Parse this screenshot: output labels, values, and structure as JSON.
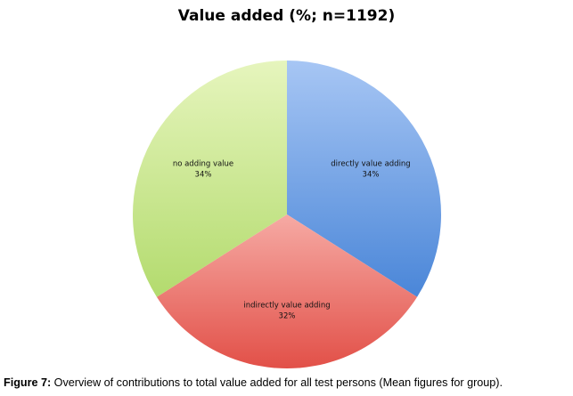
{
  "chart_data": {
    "type": "pie",
    "title": "Value added (%; n=1192)",
    "slices": [
      {
        "label": "directly value adding",
        "value": 34,
        "value_label": "34%",
        "color": "#6f9fdf"
      },
      {
        "label": "indirectly value adding",
        "value": 32,
        "value_label": "32%",
        "color": "#ec7b73"
      },
      {
        "label": "no adding value",
        "value": 34,
        "value_label": "34%",
        "color": "#c9e890"
      }
    ],
    "start": "12 o'clock",
    "direction": "clockwise",
    "legend": "none"
  },
  "caption": {
    "prefix": "Figure 7:",
    "text": " Overview of contributions to total value added for all test persons (Mean figures for group)."
  }
}
